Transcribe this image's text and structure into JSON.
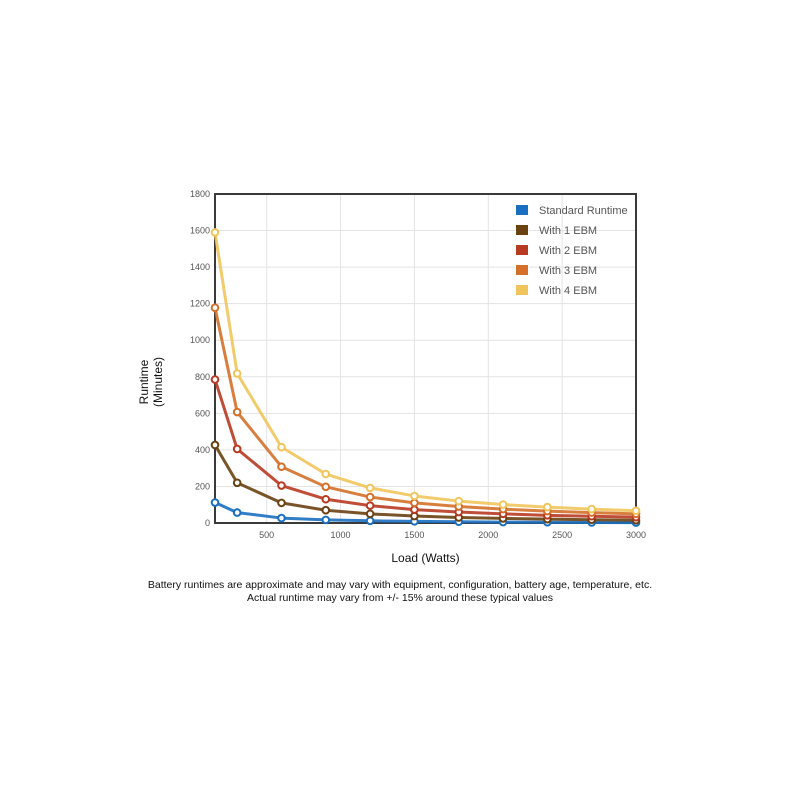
{
  "chart_data": {
    "type": "line",
    "xlabel": "Load (Watts)",
    "ylabel_lines": [
      "Runtime",
      "(Minutes)"
    ],
    "xlim": [
      150,
      3000
    ],
    "ylim": [
      0,
      1800
    ],
    "xticks": [
      500,
      1000,
      1500,
      2000,
      2500,
      3000
    ],
    "yticks": [
      0,
      200,
      400,
      600,
      800,
      1000,
      1200,
      1400,
      1600,
      1800
    ],
    "grid": true,
    "legend_position": "top-right",
    "x": [
      150,
      300,
      600,
      900,
      1200,
      1500,
      1800,
      2100,
      2400,
      2700,
      3000
    ],
    "series": [
      {
        "name": "Standard Runtime",
        "color": "#1b6fc0",
        "values": [
          112,
          57,
          27,
          17,
          12,
          9,
          7,
          5,
          4,
          3,
          2
        ]
      },
      {
        "name": "With 1 EBM",
        "color": "#6b4112",
        "values": [
          427,
          220,
          110,
          70,
          50,
          38,
          30,
          25,
          21,
          18,
          15
        ]
      },
      {
        "name": "With 2 EBM",
        "color": "#b83a22",
        "values": [
          785,
          405,
          205,
          130,
          95,
          73,
          60,
          50,
          42,
          37,
          32
        ]
      },
      {
        "name": "With 3 EBM",
        "color": "#d4702a",
        "values": [
          1178,
          607,
          308,
          198,
          142,
          110,
          90,
          76,
          65,
          57,
          50
        ]
      },
      {
        "name": "With 4 EBM",
        "color": "#efc55c",
        "values": [
          1590,
          818,
          415,
          268,
          192,
          148,
          120,
          101,
          87,
          76,
          67
        ]
      }
    ]
  },
  "caption": {
    "line1": "Battery runtimes are approximate and may vary with equipment, configuration, battery age, temperature, etc.",
    "line2": "Actual runtime may vary from +/- 15% around these typical values"
  }
}
